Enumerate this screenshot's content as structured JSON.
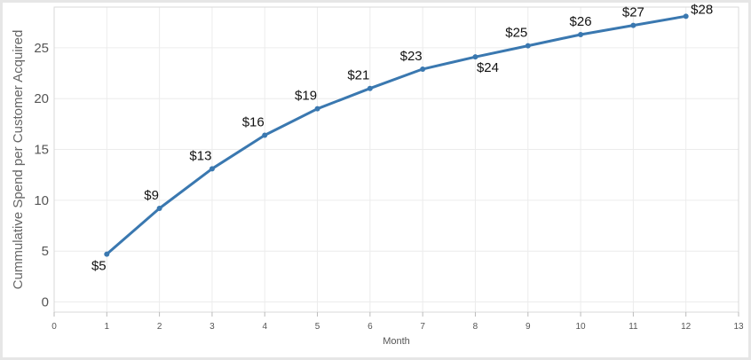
{
  "chart_data": {
    "type": "line",
    "title": "",
    "xlabel": "Month",
    "ylabel": "Cummulative Spend per Customer Acquired",
    "xlim": [
      0,
      13
    ],
    "ylim": [
      -1,
      29
    ],
    "xticks": [
      0,
      1,
      2,
      3,
      4,
      5,
      6,
      7,
      8,
      9,
      10,
      11,
      12,
      13
    ],
    "yticks": [
      0,
      5,
      10,
      15,
      20,
      25
    ],
    "grid": true,
    "line_color": "#3a78b0",
    "series": [
      {
        "x": [
          1,
          2,
          3,
          4,
          5,
          6,
          7,
          8,
          9,
          10,
          11,
          12
        ],
        "values": [
          4.7,
          9.2,
          13.1,
          16.4,
          19.0,
          21.0,
          22.9,
          24.1,
          25.2,
          26.3,
          27.2,
          28.1
        ],
        "labels": [
          "$5",
          "$9",
          "$13",
          "$16",
          "$19",
          "$21",
          "$23",
          "$24",
          "$25",
          "$26",
          "$27",
          "$28"
        ]
      }
    ]
  }
}
